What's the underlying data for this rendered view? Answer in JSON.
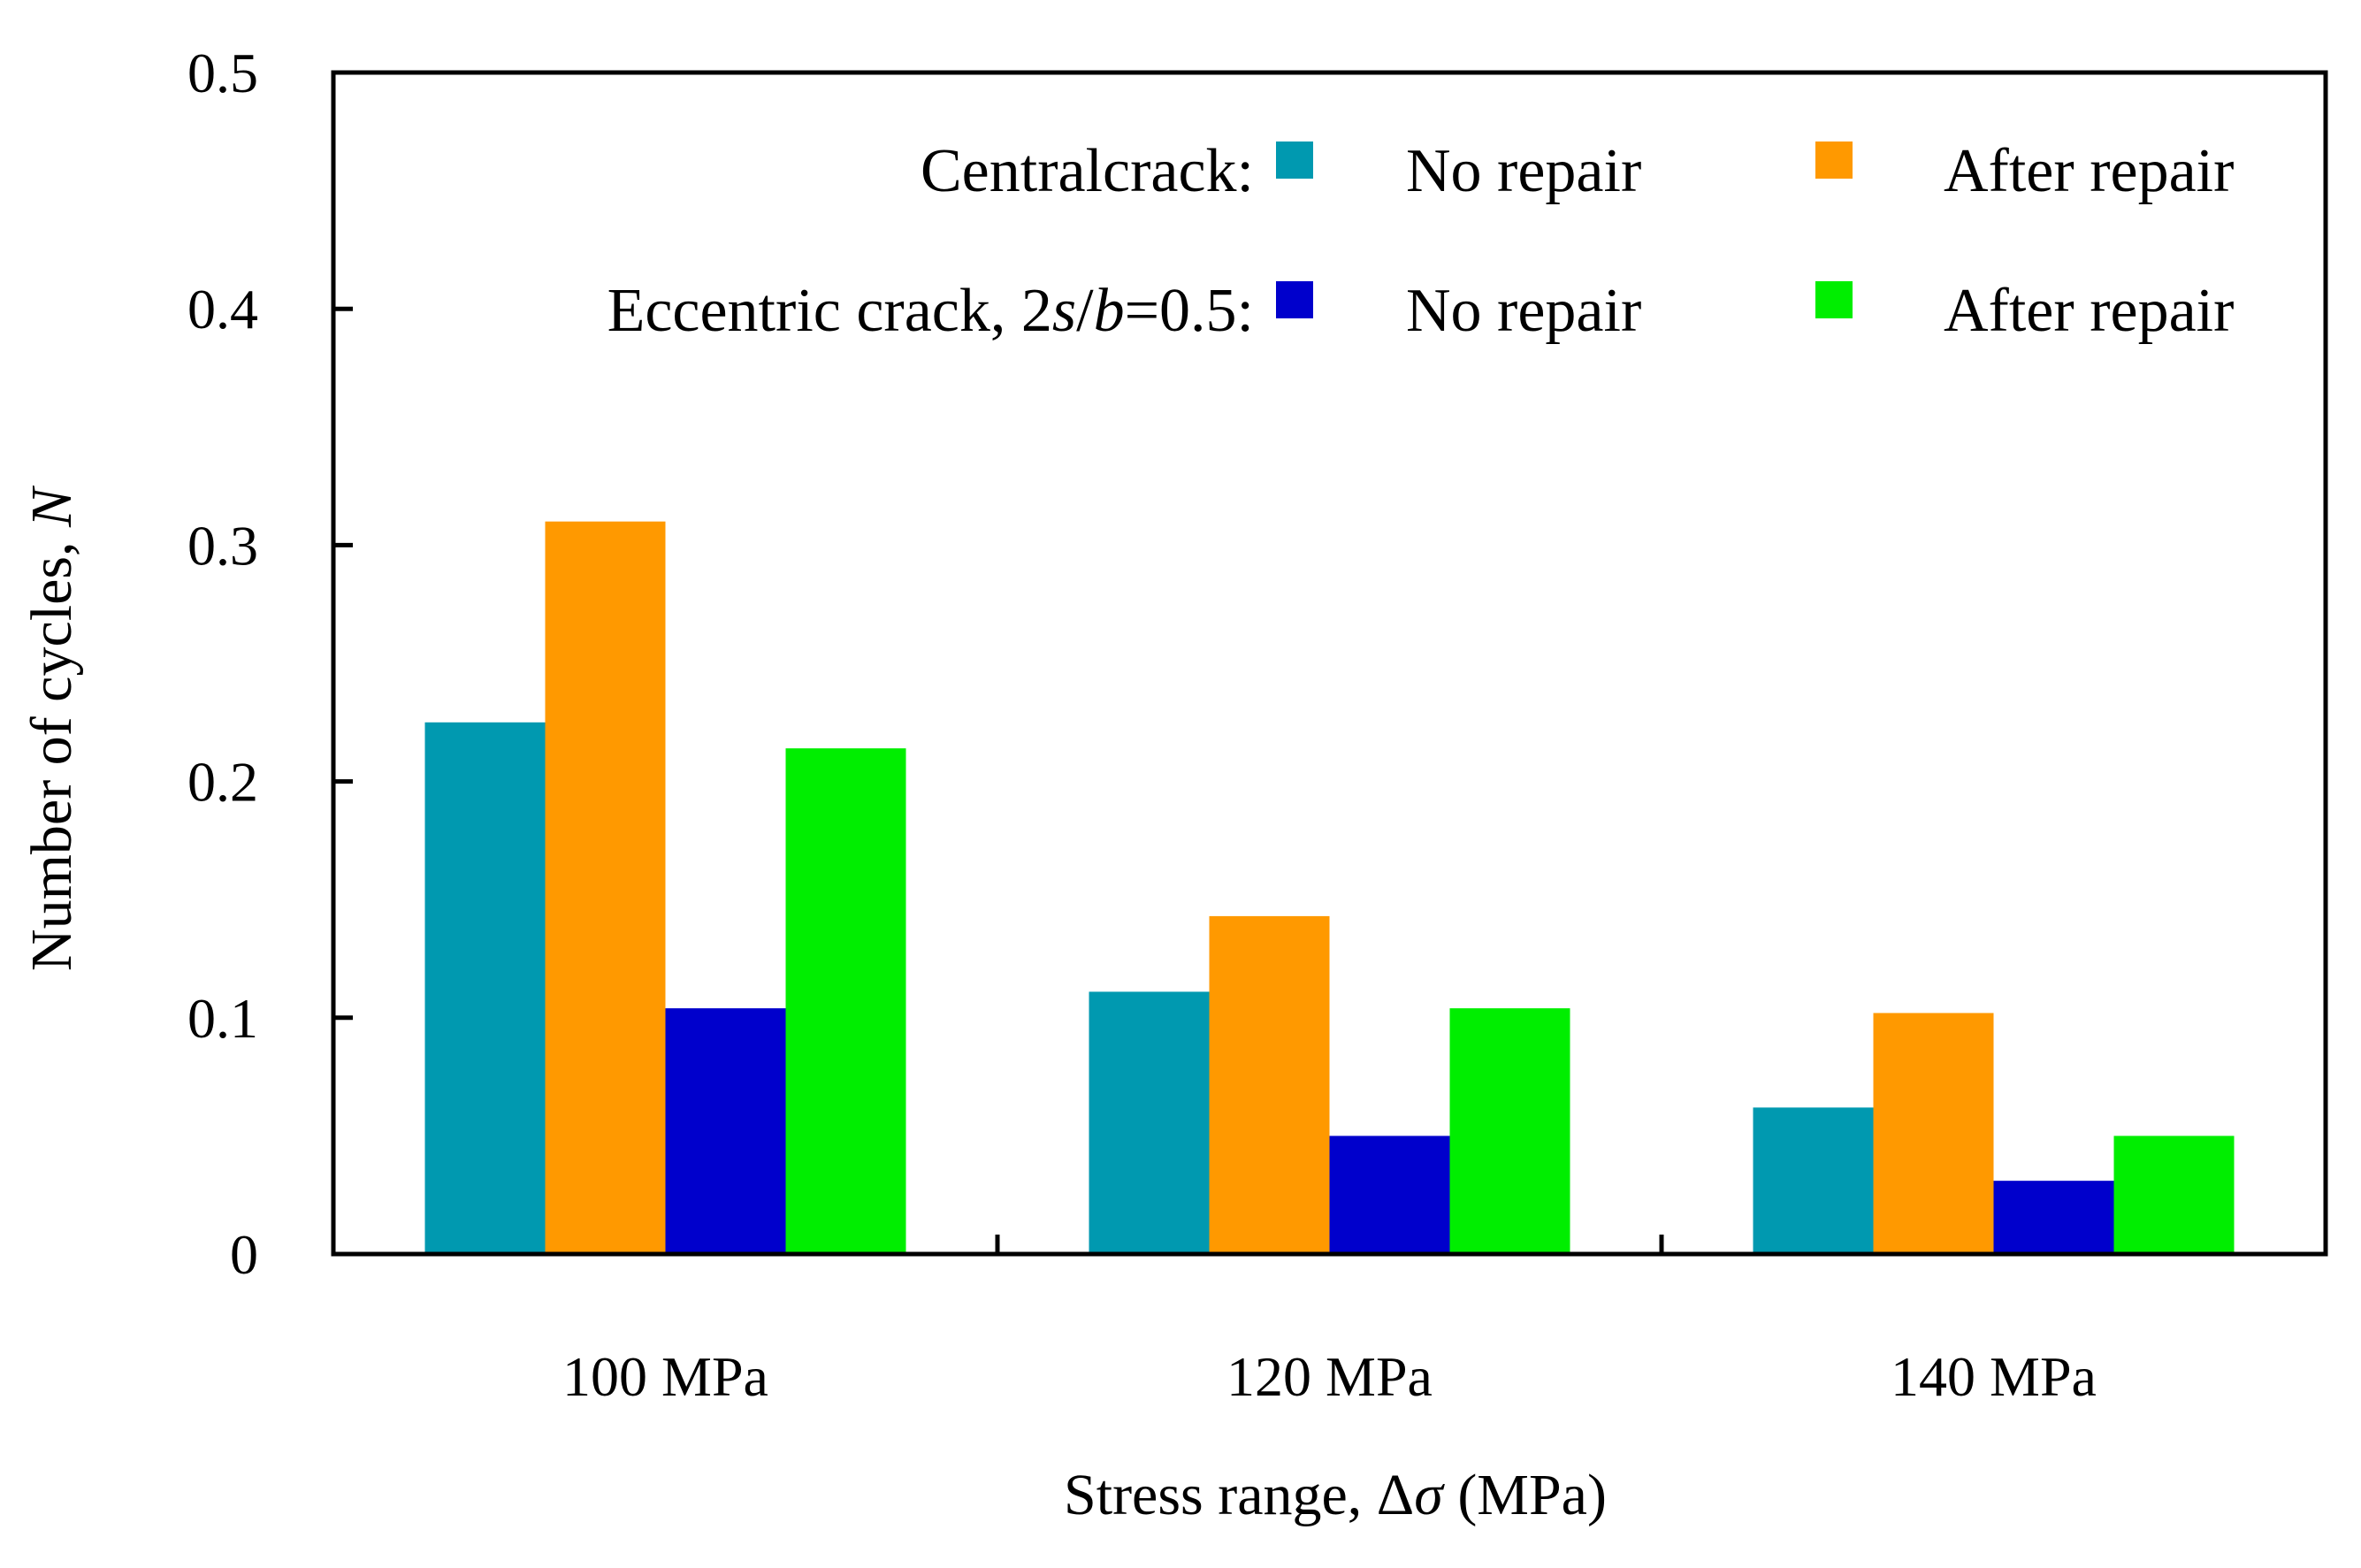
{
  "chart_data": {
    "type": "bar",
    "title": "",
    "xlabel": {
      "prefix": "Stress range, ",
      "symbol": "Δ",
      "var": "σ",
      "suffix": " (MPa)"
    },
    "ylabel": {
      "prefix": "Number of cycles, ",
      "var": "N"
    },
    "categories": [
      "100 MPa",
      "120 MPa",
      "140 MPa"
    ],
    "ylim": [
      0,
      0.5
    ],
    "yticks": [
      0,
      0.1,
      0.2,
      0.3,
      0.4,
      0.5
    ],
    "ytick_labels": [
      "0",
      "0.1",
      "0.2",
      "0.3",
      "0.4",
      "0.5"
    ],
    "grid": false,
    "legend_position": "top-right",
    "legend_groups": [
      {
        "label_parts": [
          {
            "text": "Centralcrack:",
            "italic": false
          }
        ]
      },
      {
        "label_parts": [
          {
            "text": "Eccentric crack, 2",
            "italic": false
          },
          {
            "text": "s",
            "italic": true
          },
          {
            "text": "/",
            "italic": false
          },
          {
            "text": "b",
            "italic": true
          },
          {
            "text": "=0.5:",
            "italic": false
          }
        ]
      }
    ],
    "series": [
      {
        "name": "No repair",
        "group": 0,
        "color": "#0099B0",
        "values": [
          0.225,
          0.111,
          0.062
        ]
      },
      {
        "name": "After repair",
        "group": 0,
        "color": "#FF9900",
        "values": [
          0.31,
          0.143,
          0.102
        ]
      },
      {
        "name": "No repair",
        "group": 1,
        "color": "#0000CC",
        "values": [
          0.104,
          0.05,
          0.031
        ]
      },
      {
        "name": "After repair",
        "group": 1,
        "color": "#00EE00",
        "values": [
          0.214,
          0.104,
          0.05
        ]
      }
    ]
  }
}
